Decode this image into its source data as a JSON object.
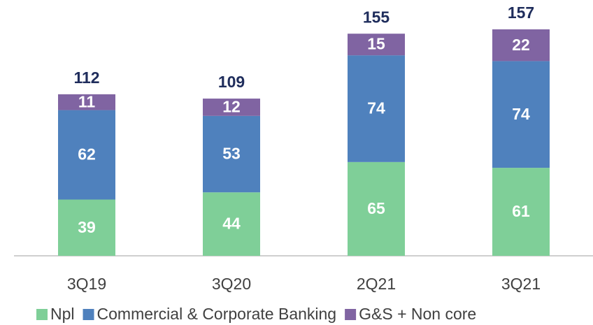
{
  "chart_data": {
    "type": "stacked_bar",
    "categories": [
      "3Q19",
      "3Q20",
      "2Q21",
      "3Q21"
    ],
    "series": [
      {
        "name": "Npl",
        "color": "#7fcf98",
        "values": [
          39,
          44,
          65,
          61
        ]
      },
      {
        "name": "Commercial & Corporate Banking",
        "color": "#4f81bd",
        "values": [
          62,
          53,
          74,
          74
        ]
      },
      {
        "name": "G&S + Non core",
        "color": "#8064a2",
        "values": [
          11,
          12,
          15,
          22
        ]
      }
    ],
    "totals": [
      112,
      109,
      155,
      157
    ],
    "legend": "bottom"
  }
}
